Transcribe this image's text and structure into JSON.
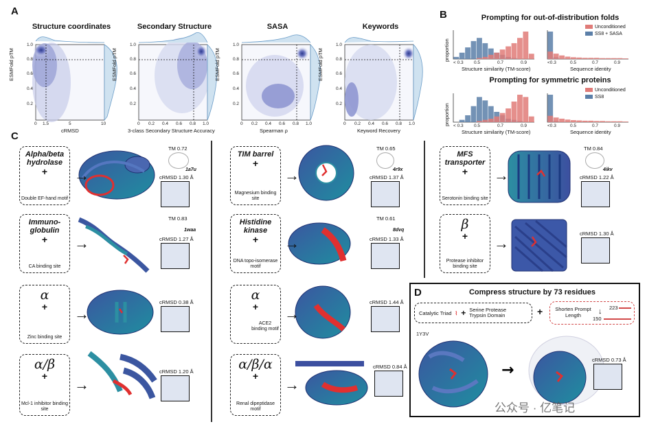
{
  "panel_a": {
    "label": "A",
    "titles": [
      "Structure coordinates",
      "Secondary Structure",
      "SASA",
      "Keywords"
    ],
    "ylabel": "ESMFold pTM",
    "xlabels": [
      "cRMSD",
      "3-class Secondary Structure Accuracy",
      "Spearman ρ",
      "Keyword Recovery"
    ],
    "yticks": [
      "0.2",
      "0.4",
      "0.6",
      "0.8",
      "1.0"
    ],
    "xticks_crmsd": [
      "0",
      "1.5",
      "5",
      "10"
    ],
    "xticks_frac": [
      "0",
      "0.2",
      "0.4",
      "0.6",
      "0.8",
      "1.0"
    ]
  },
  "panel_b": {
    "label": "B",
    "title_ood": "Prompting for out-of-distribution folds",
    "title_sym": "Prompting for symmetric proteins",
    "ylabel": "proportion",
    "xlabel_tm": "Structure similarity (TM-score)",
    "xlabel_seq": "Sequence identity",
    "xticks_tm": [
      "< 0.3",
      "0.5",
      "0.7",
      "0.9"
    ],
    "xticks_seq": [
      "<0.3",
      "0.5",
      "0.7",
      "0.9"
    ],
    "legend_ood": [
      "Unconditioned",
      "SS8 + SASA"
    ],
    "legend_sym": [
      "Unconditioned",
      "SS8"
    ],
    "colors": {
      "unconditioned": "#e07b78",
      "conditioned": "#5b7fa8"
    }
  },
  "chart_data": [
    {
      "type": "bar",
      "title": "Prompting for out-of-distribution folds",
      "xlabel": "Structure similarity (TM-score)",
      "ylabel": "proportion",
      "x": [
        0.3,
        0.35,
        0.4,
        0.45,
        0.5,
        0.55,
        0.6,
        0.65,
        0.7,
        0.75,
        0.8,
        0.85,
        0.9,
        0.95
      ],
      "series": [
        {
          "name": "SS8 + SASA",
          "values": [
            0.02,
            0.06,
            0.11,
            0.17,
            0.2,
            0.15,
            0.1,
            0.06,
            0.04,
            0.02,
            0.01,
            0.0,
            0.0,
            0.0
          ]
        },
        {
          "name": "Unconditioned",
          "values": [
            0.0,
            0.0,
            0.0,
            0.0,
            0.01,
            0.02,
            0.04,
            0.06,
            0.09,
            0.12,
            0.15,
            0.2,
            0.26,
            0.05
          ]
        }
      ]
    },
    {
      "type": "bar",
      "title": "Prompting for out-of-distribution folds",
      "xlabel": "Sequence identity",
      "x": [
        0.3,
        0.35,
        0.4,
        0.45,
        0.5,
        0.55,
        0.6,
        0.65,
        0.7,
        0.75,
        0.8,
        0.85,
        0.9,
        0.95
      ],
      "series": [
        {
          "name": "SS8 + SASA",
          "values": [
            0.92,
            0.06,
            0.01,
            0.01,
            0.0,
            0.0,
            0.0,
            0.0,
            0.0,
            0.0,
            0.0,
            0.0,
            0.0,
            0.0
          ]
        },
        {
          "name": "Unconditioned",
          "values": [
            0.25,
            0.18,
            0.12,
            0.08,
            0.06,
            0.05,
            0.04,
            0.04,
            0.04,
            0.03,
            0.03,
            0.03,
            0.03,
            0.02
          ]
        }
      ]
    },
    {
      "type": "bar",
      "title": "Prompting for symmetric proteins",
      "xlabel": "Structure similarity (TM-score)",
      "ylabel": "proportion",
      "x": [
        0.3,
        0.35,
        0.4,
        0.45,
        0.5,
        0.55,
        0.6,
        0.65,
        0.7,
        0.75,
        0.8,
        0.85,
        0.9,
        0.95
      ],
      "series": [
        {
          "name": "SS8",
          "values": [
            0.0,
            0.02,
            0.06,
            0.14,
            0.22,
            0.19,
            0.14,
            0.09,
            0.06,
            0.03,
            0.02,
            0.01,
            0.0,
            0.0
          ]
        },
        {
          "name": "Unconditioned",
          "values": [
            0.0,
            0.0,
            0.0,
            0.0,
            0.01,
            0.02,
            0.03,
            0.05,
            0.08,
            0.12,
            0.18,
            0.24,
            0.22,
            0.05
          ]
        }
      ]
    },
    {
      "type": "bar",
      "title": "Prompting for symmetric proteins",
      "xlabel": "Sequence identity",
      "x": [
        0.3,
        0.35,
        0.4,
        0.45,
        0.5,
        0.55,
        0.6,
        0.65,
        0.7,
        0.75,
        0.8,
        0.85,
        0.9,
        0.95
      ],
      "series": [
        {
          "name": "SS8",
          "values": [
            0.95,
            0.04,
            0.01,
            0.0,
            0.0,
            0.0,
            0.0,
            0.0,
            0.0,
            0.0,
            0.0,
            0.0,
            0.0,
            0.0
          ]
        },
        {
          "name": "Unconditioned",
          "values": [
            0.22,
            0.16,
            0.12,
            0.09,
            0.07,
            0.06,
            0.05,
            0.05,
            0.04,
            0.04,
            0.03,
            0.03,
            0.03,
            0.02
          ]
        }
      ]
    }
  ],
  "panel_c": {
    "label": "C",
    "cards": [
      {
        "title": "Alpha/beta hydrolase",
        "caption": "Double EF-hand motif",
        "tm": "TM 0.72",
        "pdb": "1a7u",
        "crmsd": "cRMSD 1.30 Å"
      },
      {
        "title": "TIM barrel",
        "caption": "Magnesium binding site",
        "tm": "TM 0.65",
        "pdb": "4r9x",
        "crmsd": "cRMSD 1.37 Å"
      },
      {
        "title": "MFS transporter",
        "caption": "Serotonin binding site",
        "tm": "TM 0.84",
        "pdb": "4ikv",
        "crmsd": "cRMSD 1.22 Å"
      },
      {
        "title": "Immuno-globulin",
        "caption": "CA binding site",
        "tm": "TM 0.83",
        "pdb": "1waa",
        "crmsd": "cRMSD 1.27 Å"
      },
      {
        "title": "Histidine kinase",
        "caption": "DNA topo-isomerase motif",
        "tm": "TM 0.61",
        "pdb": "8dvq",
        "crmsd": "cRMSD 1.33 Å"
      },
      {
        "title": "β",
        "caption": "Protease inhibitor binding site",
        "crmsd": "cRMSD 1.30 Å"
      },
      {
        "title": "α",
        "caption": "Zinc binding site",
        "crmsd": "cRMSD 0.38 Å"
      },
      {
        "title": "α",
        "caption": "ACE2 binding motif",
        "crmsd": "cRMSD 1.44 Å"
      },
      {
        "title": "α/β",
        "caption": "Mcl-1 inhibitor binding site",
        "crmsd": "cRMSD 1.20 Å"
      },
      {
        "title": "α/β/α",
        "caption": "Renal dipeptidase motif",
        "crmsd": "cRMSD 0.84 Å"
      }
    ]
  },
  "panel_d": {
    "label": "D",
    "title": "Compress structure by 73 residues",
    "triad": "Catalytic Triad",
    "domain": "Serine Protease Trypsin Domain",
    "shorten": "Shorten Prompt Length",
    "len_from": "223",
    "len_to": "150",
    "pdb": "1Y3V",
    "crmsd": "cRMSD 0.73 Å"
  },
  "watermark": "公众号 · 亿笔记"
}
